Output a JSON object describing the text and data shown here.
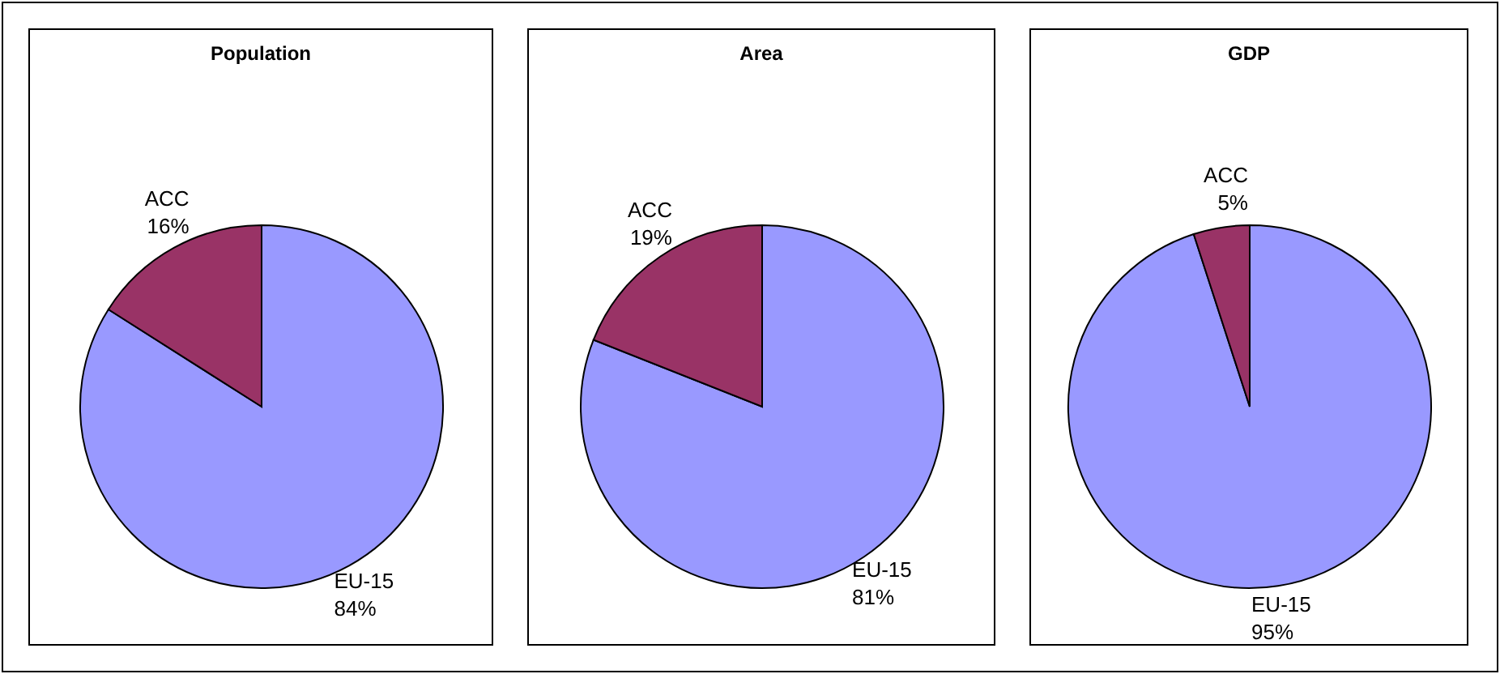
{
  "chart_data": [
    {
      "type": "pie",
      "title": "Population",
      "categories": [
        "EU-15",
        "ACC"
      ],
      "values": [
        84,
        16
      ],
      "colors": [
        "#9999ff",
        "#993366"
      ],
      "value_labels": [
        "84%",
        "16%"
      ]
    },
    {
      "type": "pie",
      "title": "Area",
      "categories": [
        "EU-15",
        "ACC"
      ],
      "values": [
        81,
        19
      ],
      "colors": [
        "#9999ff",
        "#993366"
      ],
      "value_labels": [
        "81%",
        "19%"
      ]
    },
    {
      "type": "pie",
      "title": "GDP",
      "categories": [
        "EU-15",
        "ACC"
      ],
      "values": [
        95,
        5
      ],
      "colors": [
        "#9999ff",
        "#993366"
      ],
      "value_labels": [
        "95%",
        "5%"
      ]
    }
  ]
}
